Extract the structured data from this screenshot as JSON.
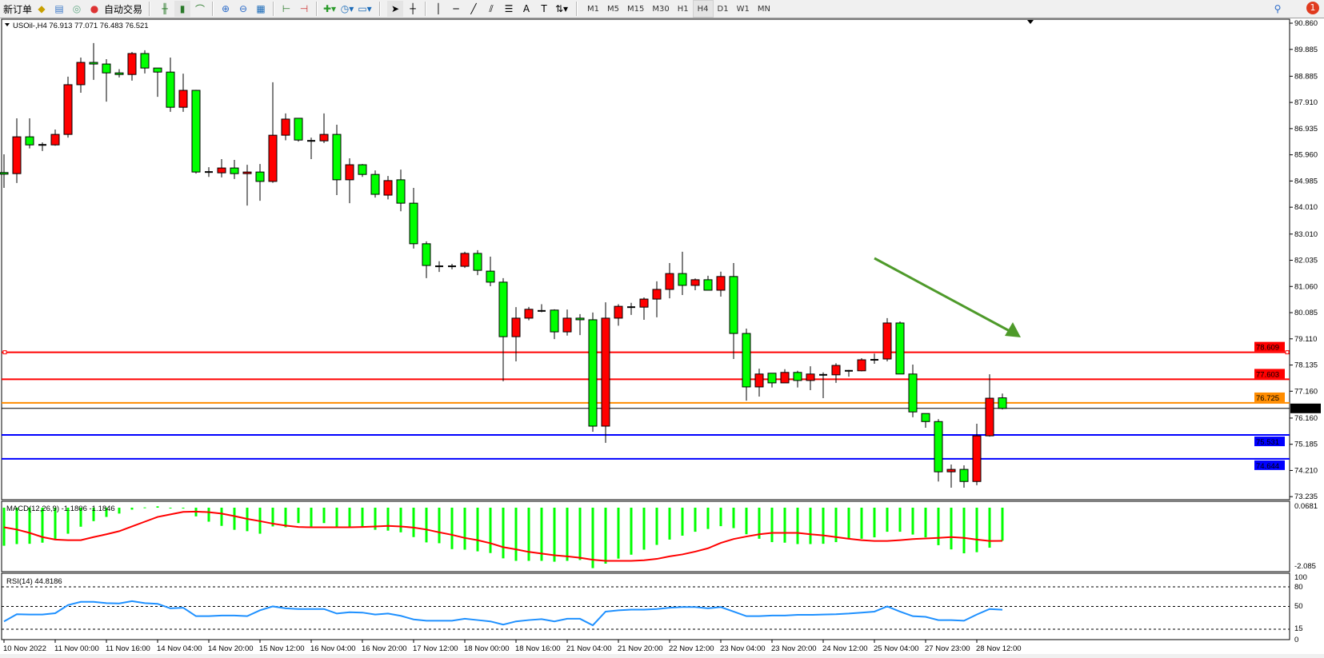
{
  "toolbar": {
    "new_order": "新订单",
    "auto_trading": "自动交易",
    "timeframes": [
      "M1",
      "M5",
      "M15",
      "M30",
      "H1",
      "H4",
      "D1",
      "W1",
      "MN"
    ],
    "active_timeframe": "H4",
    "notification_count": "1",
    "icons": [
      "new-order-icon",
      "market-watch-icon",
      "data-window-icon",
      "signals-icon",
      "auto-trading-icon",
      "bar-chart-icon",
      "candlestick-icon",
      "line-chart-icon",
      "zoom-in-icon",
      "zoom-out-icon",
      "tile-windows-icon",
      "chart-shift-icon",
      "autoscroll-icon",
      "indicators-icon",
      "periods-icon",
      "templates-icon",
      "cursor-icon",
      "crosshair-icon",
      "vertical-line-icon",
      "horizontal-line-icon",
      "trendline-icon",
      "equidistant-channel-icon",
      "fibonacci-icon",
      "text-icon",
      "text-label-icon",
      "arrows-icon",
      "search-icon",
      "notification-icon"
    ]
  },
  "chart": {
    "header": "USOil-,H4  76.913 77.071 76.483 76.521",
    "colors": {
      "bull": "#ff0000",
      "bear": "#00ff00",
      "outline": "#000000",
      "macd_hist": "#00ff00",
      "macd_signal": "#ff0000",
      "rsi": "#1e90ff",
      "arrow": "#4e9a2a"
    }
  },
  "chart_data": [
    {
      "type": "candlestick",
      "symbol": "USOil-",
      "timeframe": "H4",
      "ylim": [
        73.235,
        90.86
      ],
      "y_ticks": [
        "90.860",
        "89.885",
        "88.885",
        "87.910",
        "86.935",
        "85.960",
        "84.985",
        "84.010",
        "83.010",
        "82.035",
        "81.060",
        "80.085",
        "79.110",
        "78.135",
        "77.160",
        "76.160",
        "75.185",
        "74.210",
        "73.235"
      ],
      "x_tick_labels": [
        "10 Nov 2022",
        "11 Nov 00:00",
        "11 Nov 16:00",
        "14 Nov 04:00",
        "14 Nov 20:00",
        "15 Nov 12:00",
        "16 Nov 04:00",
        "16 Nov 20:00",
        "17 Nov 12:00",
        "18 Nov 00:00",
        "18 Nov 16:00",
        "21 Nov 04:00",
        "21 Nov 20:00",
        "22 Nov 12:00",
        "23 Nov 04:00",
        "23 Nov 20:00",
        "24 Nov 12:00",
        "25 Nov 04:00",
        "27 Nov 23:00",
        "28 Nov 12:00"
      ],
      "ohlc_fields": [
        "open",
        "high",
        "low",
        "close"
      ],
      "ohlc": [
        [
          85.3,
          85.98,
          84.73,
          85.27
        ],
        [
          85.26,
          87.32,
          84.91,
          86.63
        ],
        [
          86.63,
          87.32,
          86.2,
          86.33
        ],
        [
          86.33,
          86.42,
          86.1,
          86.33
        ],
        [
          86.33,
          86.9,
          86.3,
          86.72
        ],
        [
          86.72,
          88.87,
          86.6,
          88.57
        ],
        [
          88.57,
          89.58,
          88.27,
          89.4
        ],
        [
          89.4,
          90.12,
          88.75,
          89.34
        ],
        [
          89.34,
          89.52,
          87.94,
          89.01
        ],
        [
          89.01,
          89.15,
          88.84,
          88.95
        ],
        [
          88.95,
          89.79,
          88.72,
          89.73
        ],
        [
          89.73,
          89.85,
          88.99,
          89.19
        ],
        [
          89.19,
          89.19,
          88.12,
          89.04
        ],
        [
          89.04,
          89.58,
          87.56,
          87.73
        ],
        [
          87.73,
          88.98,
          87.56,
          88.36
        ],
        [
          88.36,
          88.38,
          85.26,
          85.32
        ],
        [
          85.32,
          85.5,
          85.14,
          85.32
        ],
        [
          85.29,
          85.8,
          85.12,
          85.47
        ],
        [
          85.47,
          85.77,
          85.06,
          85.26
        ],
        [
          85.26,
          85.59,
          84.07,
          85.32
        ],
        [
          85.32,
          85.62,
          84.25,
          84.97
        ],
        [
          84.97,
          88.66,
          84.92,
          86.69
        ],
        [
          86.69,
          87.5,
          86.5,
          87.29
        ],
        [
          87.32,
          87.32,
          86.45,
          86.51
        ],
        [
          86.48,
          86.6,
          85.8,
          86.48
        ],
        [
          86.48,
          87.5,
          86.4,
          86.72
        ],
        [
          86.72,
          87.08,
          84.46,
          85.03
        ],
        [
          85.03,
          85.83,
          84.16,
          85.59
        ],
        [
          85.59,
          85.62,
          85.14,
          85.23
        ],
        [
          85.23,
          85.38,
          84.37,
          84.49
        ],
        [
          84.46,
          85.17,
          84.3,
          85.0
        ],
        [
          85.03,
          85.41,
          83.86,
          84.16
        ],
        [
          84.16,
          84.73,
          82.47,
          82.65
        ],
        [
          82.65,
          82.74,
          81.37,
          81.84
        ],
        [
          81.81,
          82.0,
          81.6,
          81.81
        ],
        [
          81.81,
          81.9,
          81.7,
          81.81
        ],
        [
          81.81,
          82.35,
          81.75,
          82.29
        ],
        [
          82.29,
          82.41,
          81.48,
          81.66
        ],
        [
          81.63,
          82.17,
          81.07,
          81.22
        ],
        [
          81.22,
          81.37,
          77.53,
          79.19
        ],
        [
          79.19,
          80.29,
          78.27,
          79.88
        ],
        [
          79.88,
          80.3,
          79.8,
          80.21
        ],
        [
          80.15,
          80.4,
          80.1,
          80.15
        ],
        [
          80.18,
          80.21,
          79.1,
          79.37
        ],
        [
          79.37,
          80.2,
          79.23,
          79.88
        ],
        [
          79.88,
          80.03,
          79.25,
          79.82
        ],
        [
          79.82,
          80.09,
          75.65,
          75.86
        ],
        [
          75.86,
          80.47,
          75.24,
          79.88
        ],
        [
          79.88,
          80.4,
          79.6,
          80.32
        ],
        [
          80.29,
          80.45,
          80.0,
          80.29
        ],
        [
          80.29,
          80.65,
          79.82,
          80.59
        ],
        [
          80.59,
          81.25,
          79.91,
          80.95
        ],
        [
          80.95,
          81.93,
          80.62,
          81.54
        ],
        [
          81.54,
          82.35,
          80.74,
          81.1
        ],
        [
          81.1,
          81.36,
          80.92,
          81.31
        ],
        [
          81.31,
          81.46,
          80.92,
          80.92
        ],
        [
          80.92,
          81.61,
          80.68,
          81.43
        ],
        [
          81.43,
          81.93,
          78.36,
          79.31
        ],
        [
          79.31,
          79.49,
          76.81,
          77.32
        ],
        [
          77.32,
          78.0,
          76.96,
          77.8
        ],
        [
          77.83,
          77.83,
          77.3,
          77.47
        ],
        [
          77.47,
          77.98,
          77.47,
          77.86
        ],
        [
          77.86,
          77.92,
          77.3,
          77.56
        ],
        [
          77.56,
          78.09,
          77.2,
          77.8
        ],
        [
          77.77,
          77.86,
          76.9,
          77.77
        ],
        [
          77.77,
          78.2,
          77.47,
          78.12
        ],
        [
          77.92,
          77.95,
          77.7,
          77.92
        ],
        [
          77.92,
          78.39,
          77.9,
          78.33
        ],
        [
          78.33,
          78.56,
          78.18,
          78.33
        ],
        [
          78.36,
          79.88,
          78.27,
          79.7
        ],
        [
          79.7,
          79.76,
          77.8,
          77.8
        ],
        [
          77.8,
          78.15,
          76.19,
          76.39
        ],
        [
          76.33,
          76.33,
          75.8,
          76.03
        ],
        [
          76.03,
          76.12,
          73.8,
          74.16
        ],
        [
          74.16,
          74.43,
          73.57,
          74.25
        ],
        [
          74.25,
          74.4,
          73.57,
          73.8
        ],
        [
          73.8,
          75.95,
          73.66,
          75.5
        ],
        [
          75.5,
          77.79,
          75.47,
          76.9
        ],
        [
          76.913,
          77.071,
          76.483,
          76.521
        ]
      ],
      "horizontal_lines": [
        {
          "value": "78.609",
          "color": "#ff0000"
        },
        {
          "value": "77.603",
          "color": "#ff0000"
        },
        {
          "value": "76.725",
          "color": "#ff8c00"
        },
        {
          "value": "76.521",
          "color": "#000000"
        },
        {
          "value": "75.531",
          "color": "#0000ff"
        },
        {
          "value": "74.644",
          "color": "#0000ff"
        }
      ],
      "annotations": [
        {
          "type": "arrow",
          "direction": "down-right",
          "color": "#4e9a2a"
        }
      ]
    },
    {
      "type": "bar+line",
      "title": "MACD(12,26,9) -1.1806 -1.1846",
      "ylim": [
        -2.085,
        0.0681
      ],
      "y_ticks": [
        "0.0681",
        "-2.085"
      ],
      "histogram": [
        -1.36,
        -1.3,
        -1.29,
        -1.25,
        -1.14,
        -0.93,
        -0.68,
        -0.48,
        -0.33,
        -0.21,
        -0.07,
        0.01,
        0.05,
        -0.02,
        -0.03,
        -0.31,
        -0.5,
        -0.65,
        -0.79,
        -0.84,
        -0.93,
        -0.67,
        -0.7,
        -0.55,
        -0.67,
        -0.55,
        -0.68,
        -0.7,
        -0.67,
        -0.79,
        -0.82,
        -0.88,
        -1.05,
        -1.24,
        -1.27,
        -1.48,
        -1.5,
        -1.56,
        -1.62,
        -1.81,
        -1.9,
        -1.9,
        -1.9,
        -1.93,
        -1.9,
        -1.87,
        -2.16,
        -2.0,
        -1.82,
        -1.68,
        -1.5,
        -1.33,
        -1.14,
        -1.0,
        -0.86,
        -0.76,
        -0.66,
        -0.73,
        -0.95,
        -1.11,
        -1.23,
        -1.25,
        -1.3,
        -1.3,
        -1.29,
        -1.23,
        -1.11,
        -1.11,
        -1.06,
        -0.86,
        -0.86,
        -0.96,
        -1.06,
        -1.34,
        -1.49,
        -1.63,
        -1.59,
        -1.43,
        -1.1806
      ],
      "signal": [
        -0.7,
        -0.78,
        -0.9,
        -1.05,
        -1.14,
        -1.16,
        -1.16,
        -1.05,
        -0.95,
        -0.84,
        -0.67,
        -0.5,
        -0.33,
        -0.24,
        -0.15,
        -0.14,
        -0.16,
        -0.21,
        -0.3,
        -0.4,
        -0.48,
        -0.57,
        -0.64,
        -0.69,
        -0.7,
        -0.7,
        -0.7,
        -0.7,
        -0.69,
        -0.67,
        -0.65,
        -0.67,
        -0.71,
        -0.78,
        -0.88,
        -0.97,
        -1.08,
        -1.16,
        -1.27,
        -1.41,
        -1.49,
        -1.58,
        -1.64,
        -1.7,
        -1.74,
        -1.79,
        -1.86,
        -1.9,
        -1.9,
        -1.9,
        -1.88,
        -1.83,
        -1.74,
        -1.67,
        -1.57,
        -1.45,
        -1.26,
        -1.12,
        -1.03,
        -0.95,
        -0.9,
        -0.9,
        -0.9,
        -0.95,
        -0.99,
        -1.05,
        -1.11,
        -1.16,
        -1.19,
        -1.19,
        -1.16,
        -1.12,
        -1.1,
        -1.08,
        -1.05,
        -1.08,
        -1.14,
        -1.19,
        -1.1846
      ]
    },
    {
      "type": "line",
      "title": "RSI(14) 44.8186",
      "ylim": [
        0,
        100
      ],
      "y_ticks": [
        "100",
        "80",
        "50",
        "15",
        "0"
      ],
      "levels": [
        80,
        50,
        15
      ],
      "values": [
        27,
        38,
        37.5,
        37.5,
        39.5,
        52,
        57,
        57,
        55,
        54.5,
        58,
        55,
        54,
        47,
        48,
        35,
        35,
        36,
        36,
        35,
        44,
        50,
        47,
        46,
        46,
        46,
        39,
        41,
        40.5,
        37.5,
        39,
        35.5,
        30,
        28,
        28,
        28,
        31,
        29,
        27,
        22,
        27,
        29,
        30.5,
        27,
        31,
        31,
        21,
        42,
        44,
        45,
        45,
        46,
        48,
        49,
        49,
        47,
        49,
        42,
        35,
        35,
        36,
        36,
        37,
        37,
        37.5,
        38,
        39,
        40.5,
        42,
        50,
        42,
        35,
        34,
        29,
        29,
        28,
        37.5,
        46,
        44.8186
      ]
    }
  ]
}
